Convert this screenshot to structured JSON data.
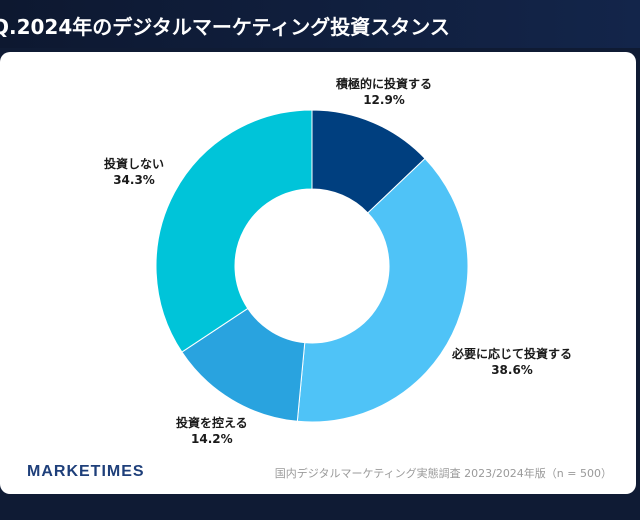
{
  "header": {
    "title": "Q.2024年のデジタルマーケティング投資スタンス"
  },
  "chart_data": {
    "type": "pie",
    "style": "donut",
    "categories": [
      "積極的に投資する",
      "必要に応じて投資する",
      "投資を控える",
      "投資しない"
    ],
    "values": [
      12.9,
      38.6,
      14.2,
      34.3
    ],
    "value_labels": [
      "12.9%",
      "38.6%",
      "14.2%",
      "34.3%"
    ],
    "colors": [
      "#003f7f",
      "#4fc3f7",
      "#29a3df",
      "#00c4d9"
    ],
    "title": "",
    "legend": "none"
  },
  "footer": {
    "brand": "MARKETIMES",
    "source": "国内デジタルマーケティング実態調査 2023/2024年版（n = 500）"
  }
}
